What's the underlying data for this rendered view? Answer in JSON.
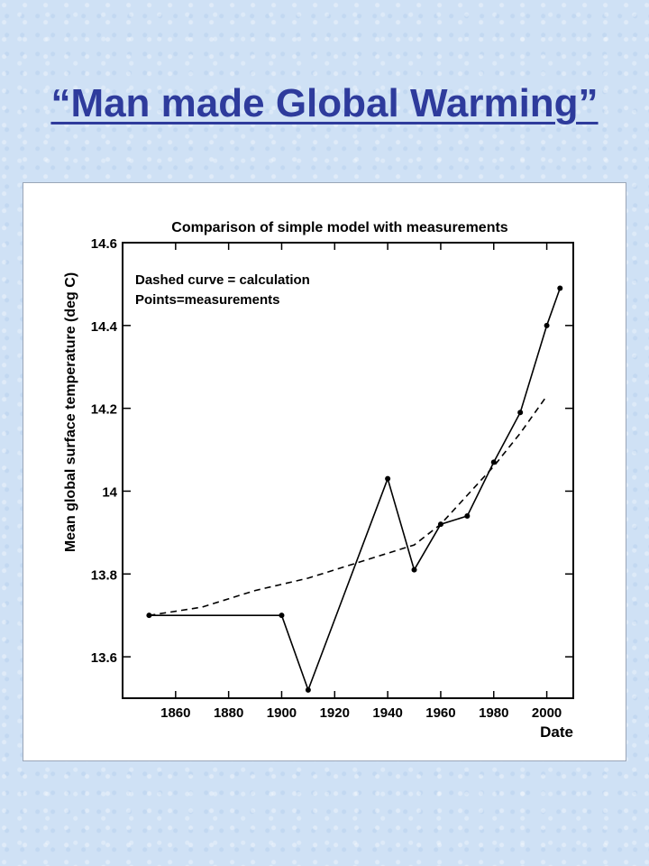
{
  "slide": {
    "title": "“Man made Global Warming”"
  },
  "chart_data": {
    "type": "line",
    "title": "Comparison of simple model with measurements",
    "xlabel": "Date",
    "ylabel": "Mean global surface temperature (deg C)",
    "xlim": [
      1840,
      2010
    ],
    "ylim": [
      13.5,
      14.6
    ],
    "xticks": [
      1860,
      1880,
      1900,
      1920,
      1940,
      1960,
      1980,
      2000
    ],
    "yticks": [
      13.6,
      13.8,
      14,
      14.2,
      14.4,
      14.6
    ],
    "ytick_labels": [
      "13.6",
      "13.8",
      "14",
      "14.2",
      "14.4",
      "14.6"
    ],
    "annotations": [
      "Dashed curve = calculation",
      "Points=measurements"
    ],
    "series": [
      {
        "style": "solid-with-points",
        "x": [
          1850,
          1900,
          1910,
          1940,
          1950,
          1960,
          1970,
          1980,
          1990,
          2000,
          2005
        ],
        "y": [
          13.7,
          13.7,
          13.52,
          14.03,
          13.81,
          13.92,
          13.94,
          14.07,
          14.19,
          14.4,
          14.49
        ]
      },
      {
        "style": "dashed",
        "x": [
          1850,
          1870,
          1890,
          1910,
          1930,
          1950,
          1960,
          1970,
          1980,
          1990,
          2000
        ],
        "y": [
          13.7,
          13.72,
          13.76,
          13.79,
          13.83,
          13.87,
          13.92,
          13.99,
          14.06,
          14.14,
          14.23
        ]
      }
    ],
    "grid": false
  }
}
